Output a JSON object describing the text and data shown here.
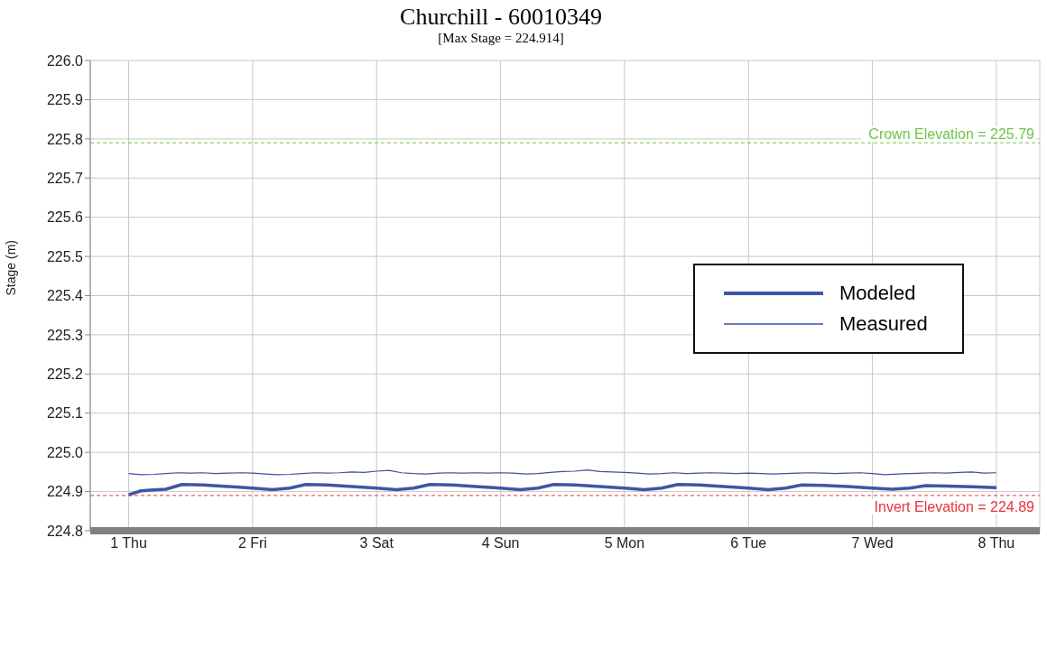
{
  "chart_data": {
    "type": "line",
    "title": "Churchill - 60010349",
    "subtitle": "[Max Stage = 224.914]",
    "ylabel": "Stage (m)",
    "xlim": [
      0.69,
      8.35
    ],
    "xticks": [
      {
        "value": 1,
        "label": "1 Thu"
      },
      {
        "value": 2,
        "label": "2 Fri"
      },
      {
        "value": 3,
        "label": "3 Sat"
      },
      {
        "value": 4,
        "label": "4 Sun"
      },
      {
        "value": 5,
        "label": "5 Mon"
      },
      {
        "value": 6,
        "label": "6 Tue"
      },
      {
        "value": 7,
        "label": "7 Wed"
      },
      {
        "value": 8,
        "label": "8 Thu"
      }
    ],
    "ylim": [
      224.8,
      226.0
    ],
    "yticks": [
      {
        "value": 224.8,
        "label": "224.8"
      },
      {
        "value": 224.9,
        "label": "224.9"
      },
      {
        "value": 225.0,
        "label": "225.0"
      },
      {
        "value": 225.1,
        "label": "225.1"
      },
      {
        "value": 225.2,
        "label": "225.2"
      },
      {
        "value": 225.3,
        "label": "225.3"
      },
      {
        "value": 225.4,
        "label": "225.4"
      },
      {
        "value": 225.5,
        "label": "225.5"
      },
      {
        "value": 225.6,
        "label": "225.6"
      },
      {
        "value": 225.7,
        "label": "225.7"
      },
      {
        "value": 225.8,
        "label": "225.8"
      },
      {
        "value": 225.9,
        "label": "225.9"
      },
      {
        "value": 226.0,
        "label": "226.0"
      }
    ],
    "grid": true,
    "legend": "right",
    "marker": "none",
    "series": [
      {
        "name": "Modeled",
        "color": "#3f55a8",
        "x": [
          1,
          1.1,
          1.2,
          1.3,
          1.43,
          1.6,
          1.8,
          2.0,
          2.16,
          2.3,
          2.43,
          2.6,
          2.8,
          3.0,
          3.16,
          3.3,
          3.43,
          3.6,
          3.8,
          4.0,
          4.16,
          4.3,
          4.43,
          4.6,
          4.8,
          5.0,
          5.16,
          5.3,
          5.43,
          5.6,
          5.8,
          6.0,
          6.16,
          6.3,
          6.43,
          6.6,
          6.8,
          7.0,
          7.16,
          7.3,
          7.43,
          7.6,
          7.8,
          8.0
        ],
        "values": [
          224.892,
          224.902,
          224.904,
          224.906,
          224.918,
          224.917,
          224.913,
          224.909,
          224.905,
          224.909,
          224.918,
          224.917,
          224.913,
          224.909,
          224.905,
          224.909,
          224.918,
          224.917,
          224.913,
          224.909,
          224.905,
          224.909,
          224.918,
          224.917,
          224.913,
          224.909,
          224.905,
          224.909,
          224.918,
          224.917,
          224.913,
          224.909,
          224.905,
          224.909,
          224.917,
          224.916,
          224.913,
          224.909,
          224.906,
          224.909,
          224.915,
          224.914,
          224.912,
          224.91
        ]
      },
      {
        "name": "Measured",
        "color": "#3a4ea3",
        "x": [
          1.0,
          1.1,
          1.2,
          1.3,
          1.4,
          1.5,
          1.6,
          1.7,
          1.8,
          1.9,
          2.0,
          2.1,
          2.2,
          2.3,
          2.4,
          2.5,
          2.6,
          2.7,
          2.8,
          2.9,
          3.0,
          3.1,
          3.2,
          3.3,
          3.4,
          3.5,
          3.6,
          3.7,
          3.8,
          3.9,
          4.0,
          4.1,
          4.2,
          4.3,
          4.4,
          4.5,
          4.6,
          4.7,
          4.8,
          4.9,
          5.0,
          5.1,
          5.2,
          5.3,
          5.4,
          5.5,
          5.6,
          5.7,
          5.8,
          5.9,
          6.0,
          6.1,
          6.2,
          6.3,
          6.4,
          6.5,
          6.6,
          6.7,
          6.8,
          6.9,
          7.0,
          7.1,
          7.2,
          7.3,
          7.4,
          7.5,
          7.6,
          7.7,
          7.8,
          7.9,
          8.0
        ],
        "values": [
          224.946,
          224.943,
          224.944,
          224.946,
          224.948,
          224.947,
          224.948,
          224.946,
          224.947,
          224.948,
          224.947,
          224.945,
          224.943,
          224.944,
          224.946,
          224.948,
          224.947,
          224.948,
          224.95,
          224.949,
          224.952,
          224.954,
          224.948,
          224.946,
          224.945,
          224.947,
          224.948,
          224.947,
          224.948,
          224.947,
          224.948,
          224.947,
          224.945,
          224.946,
          224.949,
          224.951,
          224.952,
          224.955,
          224.951,
          224.95,
          224.949,
          224.947,
          224.945,
          224.946,
          224.948,
          224.946,
          224.947,
          224.948,
          224.947,
          224.946,
          224.947,
          224.946,
          224.945,
          224.946,
          224.947,
          224.948,
          224.947,
          224.946,
          224.947,
          224.948,
          224.946,
          224.943,
          224.945,
          224.946,
          224.947,
          224.948,
          224.947,
          224.949,
          224.95,
          224.947,
          224.948
        ]
      }
    ],
    "ref_lines": [
      {
        "axis": "y",
        "value": 225.79,
        "label": "Crown Elevation = 225.79",
        "color": "#6fc24a",
        "line_style": "dashed"
      },
      {
        "axis": "y",
        "value": 224.89,
        "label": "Invert Elevation = 224.89",
        "color": "#e8333a",
        "line_style": "dashed"
      }
    ]
  }
}
